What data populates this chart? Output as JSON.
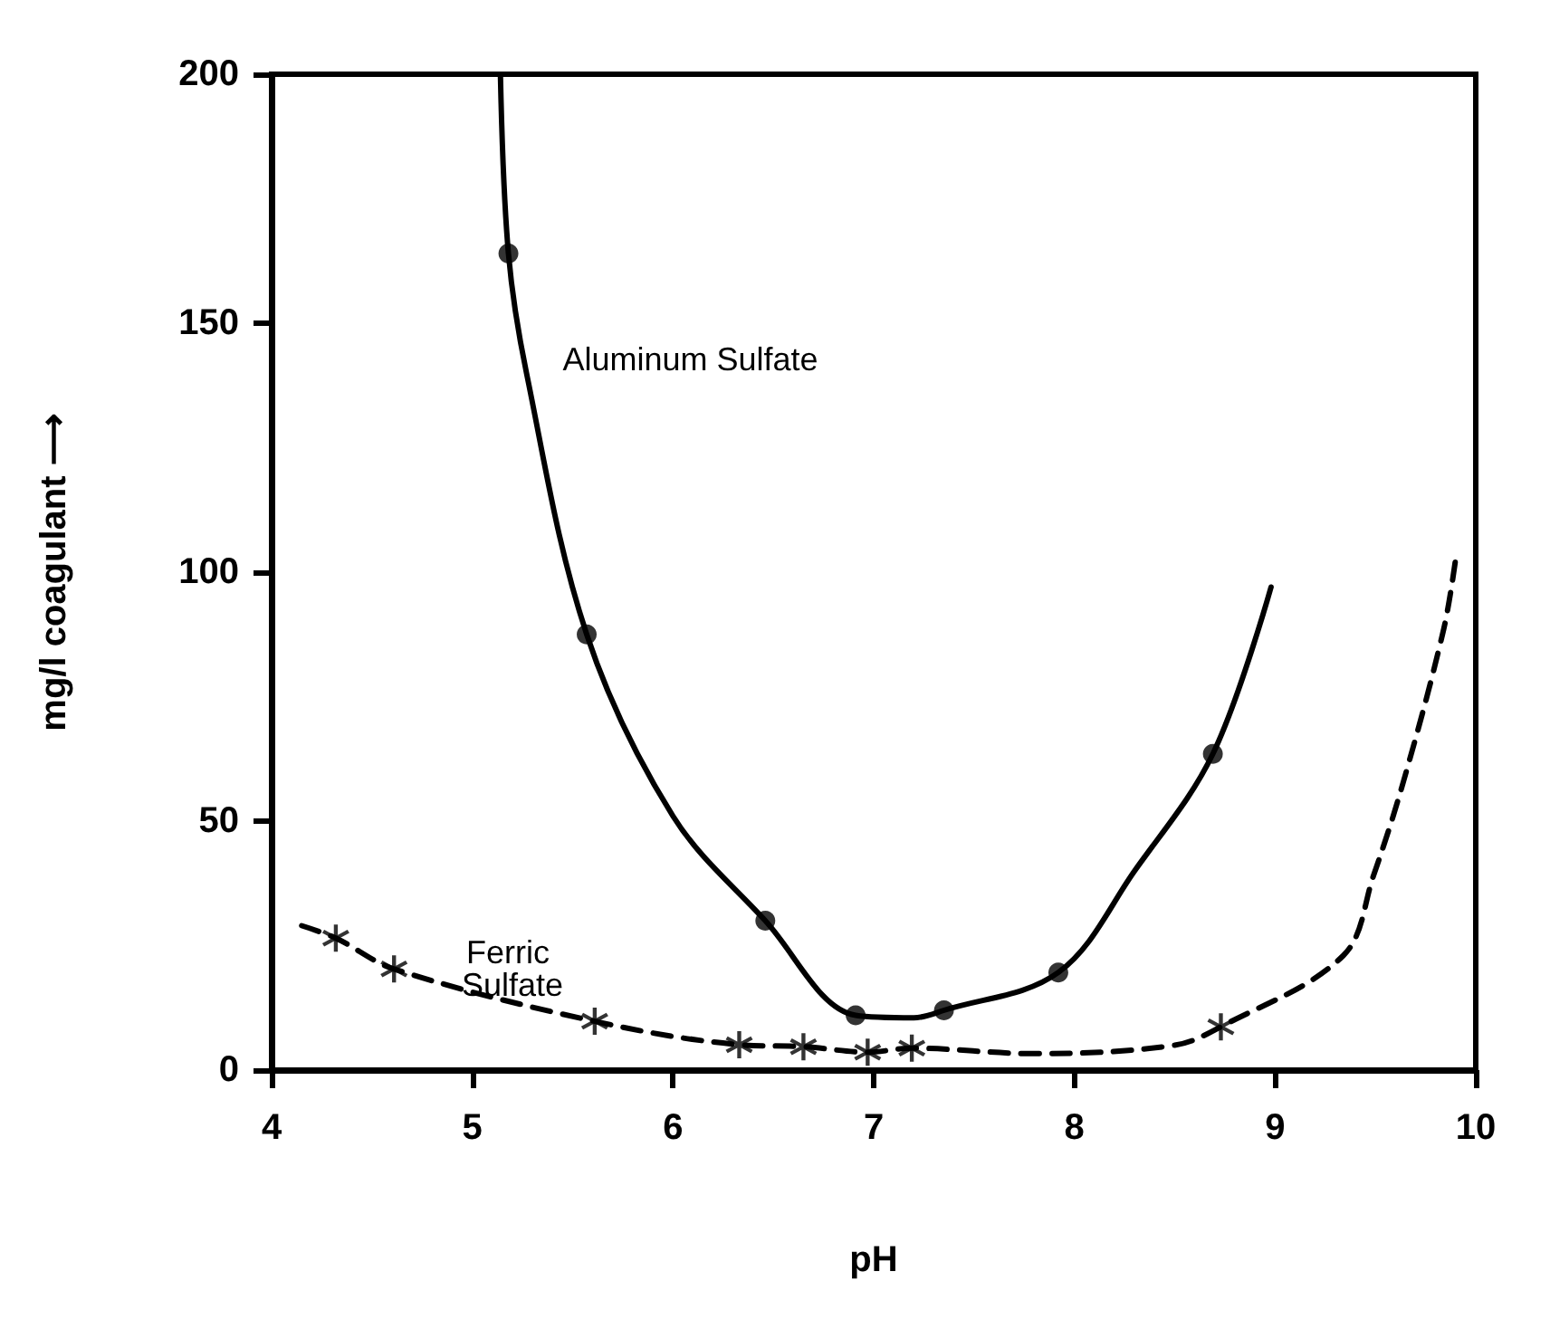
{
  "chart_data": {
    "type": "line",
    "xlabel": "pH",
    "ylabel": "mg/l coagulant ⟶",
    "xlim": [
      4,
      10
    ],
    "ylim": [
      0,
      200
    ],
    "xticks": [
      4,
      5,
      6,
      7,
      8,
      9,
      10
    ],
    "yticks": [
      0,
      50,
      100,
      150,
      200
    ],
    "grid": false,
    "legend": false,
    "series": [
      {
        "name": "Aluminum Sulfate",
        "type": "line",
        "color": "#000000",
        "line_style": "solid",
        "marker": "none",
        "x": [
          5.14,
          5.18,
          5.27,
          5.57,
          6.0,
          6.46,
          6.91,
          7.2,
          7.35,
          7.92,
          8.3,
          8.69,
          8.98
        ],
        "values": [
          200,
          164,
          140,
          87.5,
          51,
          30,
          11,
          10.5,
          12,
          19.6,
          40,
          63.5,
          97
        ]
      },
      {
        "type": "scatter",
        "color": "#000000",
        "marker": "circle",
        "x": [
          5.18,
          5.57,
          6.46,
          6.91,
          7.35,
          7.92,
          8.69
        ],
        "values": [
          164,
          87.5,
          30,
          11,
          12,
          19.6,
          63.5
        ]
      },
      {
        "name": "Ferric Sulfate",
        "type": "line",
        "color": "#000000",
        "line_style": "dashed",
        "marker": "none",
        "x": [
          4.15,
          4.32,
          4.61,
          5.61,
          6.33,
          6.65,
          6.97,
          7.19,
          7.8,
          8.5,
          8.73,
          9.34,
          9.49,
          9.64,
          9.84,
          9.9
        ],
        "values": [
          29,
          26.5,
          20.3,
          9.8,
          5.1,
          4.7,
          3.6,
          4.4,
          3.3,
          5,
          8.7,
          23,
          39,
          58,
          88.5,
          102.7
        ]
      },
      {
        "type": "scatter",
        "color": "#000000",
        "marker": "star",
        "x": [
          4.32,
          4.61,
          5.61,
          6.33,
          6.65,
          6.97,
          7.19,
          8.73
        ],
        "values": [
          26.5,
          20.3,
          9.8,
          5.1,
          4.7,
          3.6,
          4.4,
          8.7
        ]
      }
    ]
  }
}
